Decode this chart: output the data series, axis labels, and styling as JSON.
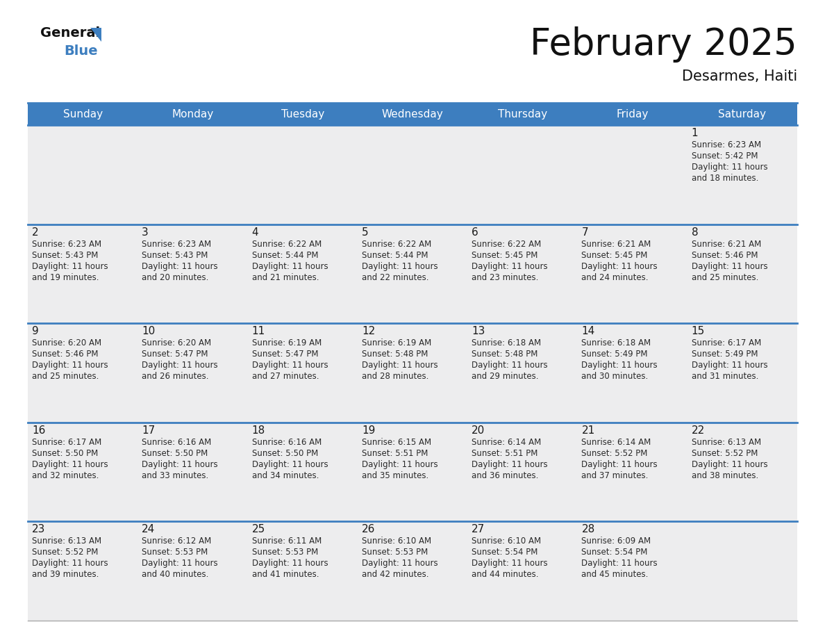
{
  "title": "February 2025",
  "subtitle": "Desarmes, Haiti",
  "header_bg": "#3d7ebf",
  "header_text_color": "#ffffff",
  "day_names": [
    "Sunday",
    "Monday",
    "Tuesday",
    "Wednesday",
    "Thursday",
    "Friday",
    "Saturday"
  ],
  "bg_color": "#ffffff",
  "cell_bg": "#ededee",
  "day_num_color": "#1a1a1a",
  "info_color": "#2a2a2a",
  "divider_color": "#3d7ebf",
  "title_fontsize": 38,
  "subtitle_fontsize": 15,
  "day_name_fontsize": 11,
  "day_num_fontsize": 11,
  "info_fontsize": 8.5,
  "calendar_data": [
    [
      null,
      null,
      null,
      null,
      null,
      null,
      {
        "day": "1",
        "sunrise": "6:23 AM",
        "sunset": "5:42 PM",
        "daylight": "11 hours",
        "daylight2": "and 18 minutes."
      }
    ],
    [
      {
        "day": "2",
        "sunrise": "6:23 AM",
        "sunset": "5:43 PM",
        "daylight": "11 hours",
        "daylight2": "and 19 minutes."
      },
      {
        "day": "3",
        "sunrise": "6:23 AM",
        "sunset": "5:43 PM",
        "daylight": "11 hours",
        "daylight2": "and 20 minutes."
      },
      {
        "day": "4",
        "sunrise": "6:22 AM",
        "sunset": "5:44 PM",
        "daylight": "11 hours",
        "daylight2": "and 21 minutes."
      },
      {
        "day": "5",
        "sunrise": "6:22 AM",
        "sunset": "5:44 PM",
        "daylight": "11 hours",
        "daylight2": "and 22 minutes."
      },
      {
        "day": "6",
        "sunrise": "6:22 AM",
        "sunset": "5:45 PM",
        "daylight": "11 hours",
        "daylight2": "and 23 minutes."
      },
      {
        "day": "7",
        "sunrise": "6:21 AM",
        "sunset": "5:45 PM",
        "daylight": "11 hours",
        "daylight2": "and 24 minutes."
      },
      {
        "day": "8",
        "sunrise": "6:21 AM",
        "sunset": "5:46 PM",
        "daylight": "11 hours",
        "daylight2": "and 25 minutes."
      }
    ],
    [
      {
        "day": "9",
        "sunrise": "6:20 AM",
        "sunset": "5:46 PM",
        "daylight": "11 hours",
        "daylight2": "and 25 minutes."
      },
      {
        "day": "10",
        "sunrise": "6:20 AM",
        "sunset": "5:47 PM",
        "daylight": "11 hours",
        "daylight2": "and 26 minutes."
      },
      {
        "day": "11",
        "sunrise": "6:19 AM",
        "sunset": "5:47 PM",
        "daylight": "11 hours",
        "daylight2": "and 27 minutes."
      },
      {
        "day": "12",
        "sunrise": "6:19 AM",
        "sunset": "5:48 PM",
        "daylight": "11 hours",
        "daylight2": "and 28 minutes."
      },
      {
        "day": "13",
        "sunrise": "6:18 AM",
        "sunset": "5:48 PM",
        "daylight": "11 hours",
        "daylight2": "and 29 minutes."
      },
      {
        "day": "14",
        "sunrise": "6:18 AM",
        "sunset": "5:49 PM",
        "daylight": "11 hours",
        "daylight2": "and 30 minutes."
      },
      {
        "day": "15",
        "sunrise": "6:17 AM",
        "sunset": "5:49 PM",
        "daylight": "11 hours",
        "daylight2": "and 31 minutes."
      }
    ],
    [
      {
        "day": "16",
        "sunrise": "6:17 AM",
        "sunset": "5:50 PM",
        "daylight": "11 hours",
        "daylight2": "and 32 minutes."
      },
      {
        "day": "17",
        "sunrise": "6:16 AM",
        "sunset": "5:50 PM",
        "daylight": "11 hours",
        "daylight2": "and 33 minutes."
      },
      {
        "day": "18",
        "sunrise": "6:16 AM",
        "sunset": "5:50 PM",
        "daylight": "11 hours",
        "daylight2": "and 34 minutes."
      },
      {
        "day": "19",
        "sunrise": "6:15 AM",
        "sunset": "5:51 PM",
        "daylight": "11 hours",
        "daylight2": "and 35 minutes."
      },
      {
        "day": "20",
        "sunrise": "6:14 AM",
        "sunset": "5:51 PM",
        "daylight": "11 hours",
        "daylight2": "and 36 minutes."
      },
      {
        "day": "21",
        "sunrise": "6:14 AM",
        "sunset": "5:52 PM",
        "daylight": "11 hours",
        "daylight2": "and 37 minutes."
      },
      {
        "day": "22",
        "sunrise": "6:13 AM",
        "sunset": "5:52 PM",
        "daylight": "11 hours",
        "daylight2": "and 38 minutes."
      }
    ],
    [
      {
        "day": "23",
        "sunrise": "6:13 AM",
        "sunset": "5:52 PM",
        "daylight": "11 hours",
        "daylight2": "and 39 minutes."
      },
      {
        "day": "24",
        "sunrise": "6:12 AM",
        "sunset": "5:53 PM",
        "daylight": "11 hours",
        "daylight2": "and 40 minutes."
      },
      {
        "day": "25",
        "sunrise": "6:11 AM",
        "sunset": "5:53 PM",
        "daylight": "11 hours",
        "daylight2": "and 41 minutes."
      },
      {
        "day": "26",
        "sunrise": "6:10 AM",
        "sunset": "5:53 PM",
        "daylight": "11 hours",
        "daylight2": "and 42 minutes."
      },
      {
        "day": "27",
        "sunrise": "6:10 AM",
        "sunset": "5:54 PM",
        "daylight": "11 hours",
        "daylight2": "and 44 minutes."
      },
      {
        "day": "28",
        "sunrise": "6:09 AM",
        "sunset": "5:54 PM",
        "daylight": "11 hours",
        "daylight2": "and 45 minutes."
      },
      null
    ]
  ]
}
